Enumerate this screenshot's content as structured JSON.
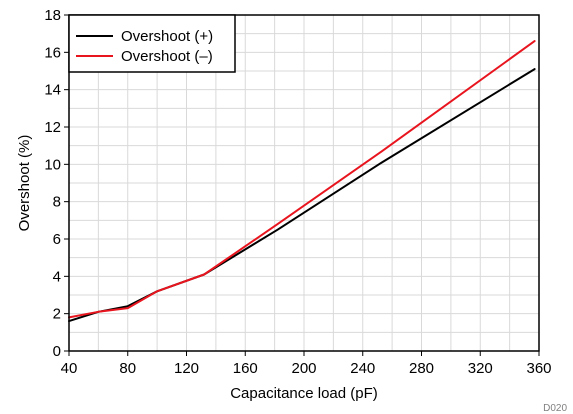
{
  "chart_data": {
    "type": "line",
    "xlabel": "Capacitance load (pF)",
    "ylabel": "Overshoot (%)",
    "xlim": [
      40,
      360
    ],
    "ylim": [
      0,
      18
    ],
    "x_ticks": [
      40,
      80,
      120,
      160,
      200,
      240,
      280,
      320,
      360
    ],
    "y_ticks": [
      0,
      2,
      4,
      6,
      8,
      10,
      12,
      14,
      16,
      18
    ],
    "grid": true,
    "legend_position": "top-left",
    "series": [
      {
        "name": "Overshoot (+)",
        "color": "#000000",
        "x": [
          40,
          60,
          80,
          100,
          132,
          182,
          253,
          357
        ],
        "y": [
          1.6,
          2.1,
          2.4,
          3.2,
          4.1,
          6.5,
          10.1,
          15.1
        ]
      },
      {
        "name": "Overshoot (–)",
        "color": "#e8141e",
        "x": [
          40,
          60,
          80,
          100,
          132,
          182,
          253,
          357
        ],
        "y": [
          1.8,
          2.1,
          2.3,
          3.2,
          4.1,
          6.8,
          10.7,
          16.6
        ]
      }
    ]
  },
  "figure_id": "D020"
}
